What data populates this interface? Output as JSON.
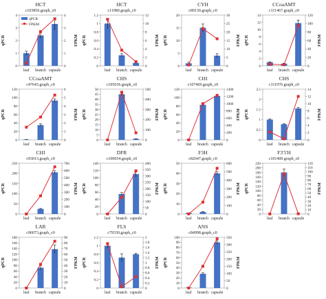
{
  "legend": [
    {
      "label": "qPCR",
      "color": "#4472C4",
      "shape": "bar"
    },
    {
      "label": "FPKM",
      "color": "#E03030",
      "shape": "line"
    }
  ],
  "chart_data": [
    {
      "type": "bar",
      "gene": "HCT",
      "unigene": "c103856.graph_c0",
      "categories": [
        "leaf",
        "branch",
        "capsule"
      ],
      "series": [
        {
          "name": "qPCR",
          "values": [
            1.0,
            2.4,
            3.3
          ],
          "errors": [
            0.15,
            0.25,
            0.5
          ]
        },
        {
          "name": "FPKM",
          "values": [
            0.2,
            2.7,
            3.7
          ]
        }
      ],
      "ylabel": "qPCR",
      "y2label": "FPKM",
      "ylim": [
        0,
        4
      ],
      "yticks": [
        0,
        1,
        2,
        3,
        4
      ],
      "y2lim": [
        0,
        4
      ],
      "y2ticks": [
        0,
        1,
        2,
        3,
        4
      ]
    },
    {
      "type": "bar",
      "gene": "HCT",
      "unigene": "c11980.graph_c0",
      "categories": [
        "leaf",
        "branch",
        "capsule"
      ],
      "series": [
        {
          "name": "qPCR",
          "values": [
            1.0,
            0.25,
            0.07
          ],
          "errors": [
            0.12,
            0.04,
            0.02
          ]
        },
        {
          "name": "FPKM",
          "values": [
            11.0,
            3.7,
            1.0
          ]
        }
      ],
      "ylabel": "qPCR",
      "y2label": "FPKM",
      "ylim": [
        0,
        1.2
      ],
      "yticks": [
        0,
        0.2,
        0.4,
        0.6,
        0.8,
        1.0,
        1.2
      ],
      "y2lim": [
        0,
        12
      ],
      "y2ticks": [
        0,
        2,
        4,
        6,
        8,
        10,
        12
      ]
    },
    {
      "type": "bar",
      "gene": "CYH",
      "unigene": "c89130.graph_c0",
      "categories": [
        "leaf",
        "branch",
        "capsule"
      ],
      "series": [
        {
          "name": "qPCR",
          "values": [
            1.0,
            15.0,
            4.0
          ],
          "errors": [
            0.4,
            1.5,
            0.8
          ]
        },
        {
          "name": "FPKM",
          "values": [
            0.5,
            22.0,
            16.0
          ]
        }
      ],
      "ylabel": "qPCR",
      "y2label": "FPKM",
      "ylim": [
        0,
        20
      ],
      "yticks": [
        0,
        5,
        10,
        15,
        20
      ],
      "y2lim": [
        0,
        30
      ],
      "y2ticks": [
        0,
        5,
        10,
        15,
        20,
        25,
        30
      ]
    },
    {
      "type": "bar",
      "gene": "CCoaAMT",
      "unigene": "c111467.graph_c0",
      "categories": [
        "leaf",
        "branch",
        "capsule"
      ],
      "series": [
        {
          "name": "qPCR",
          "values": [
            1.0,
            0.6,
            11.8
          ],
          "errors": [
            0.1,
            0.1,
            0.8
          ]
        },
        {
          "name": "FPKM",
          "values": [
            4.0,
            2.5,
            95.0
          ]
        }
      ],
      "ylabel": "qPCR",
      "y2label": "FPKM",
      "ylim": [
        0,
        14
      ],
      "yticks": [
        0,
        2,
        4,
        6,
        8,
        10,
        12,
        14
      ],
      "y2lim": [
        0,
        120
      ],
      "y2ticks": [
        0,
        20,
        40,
        60,
        80,
        100,
        120
      ]
    },
    {
      "type": "bar",
      "gene": "CCoaAMT",
      "unigene": "c47643.graph_c0",
      "categories": [
        "leaf",
        "branch",
        "capsule"
      ],
      "series": [
        {
          "name": "qPCR",
          "values": [
            1.0,
            35.0,
            93.0
          ],
          "errors": [
            0.3,
            3.0,
            4.0
          ]
        },
        {
          "name": "FPKM",
          "values": [
            1.5,
            2.7,
            5.3
          ]
        }
      ],
      "ylabel": "qPCR",
      "y2label": "FPKM",
      "ylim": [
        0,
        120
      ],
      "yticks": [
        0,
        20,
        40,
        60,
        80,
        100,
        120
      ],
      "y2lim": [
        0,
        6
      ],
      "y2ticks": [
        0,
        1,
        2,
        3,
        4,
        5,
        6
      ]
    },
    {
      "type": "bar",
      "gene": "CHS",
      "unigene": "c105636.graph_c0",
      "categories": [
        "leaf",
        "branch",
        "capsule"
      ],
      "series": [
        {
          "name": "qPCR",
          "values": [
            0.0,
            45.0,
            1.0
          ],
          "errors": [
            0.0,
            1.2,
            0.2
          ]
        },
        {
          "name": "FPKM",
          "values": [
            0.0,
            470.0,
            70.0
          ]
        }
      ],
      "ylabel": "qPCR",
      "y2label": "FPKM",
      "ylim": [
        0,
        50
      ],
      "yticks": [
        0,
        5,
        10,
        15,
        20,
        25,
        30,
        35,
        40,
        45,
        50
      ],
      "y2lim": [
        0,
        500
      ],
      "y2ticks": [
        0,
        100,
        200,
        300,
        400,
        500
      ]
    },
    {
      "type": "bar",
      "gene": "CHI",
      "unigene": "c107469.graph_c0",
      "categories": [
        "leaf",
        "branch",
        "capsule"
      ],
      "series": [
        {
          "name": "qPCR",
          "values": [
            1.0,
            83.0,
            104.0
          ],
          "errors": [
            0.2,
            2.0,
            3.0
          ]
        },
        {
          "name": "FPKM",
          "values": [
            0.0,
            1000.0,
            1230.0
          ]
        }
      ],
      "ylabel": "qPCR",
      "y2label": "FPKM",
      "ylim": [
        0,
        120
      ],
      "yticks": [
        0,
        20,
        40,
        60,
        80,
        100,
        120
      ],
      "y2lim": [
        0,
        1400
      ],
      "y2ticks": [
        0,
        200,
        400,
        600,
        800,
        1000,
        1200,
        1400
      ]
    },
    {
      "type": "bar",
      "gene": "CHS",
      "unigene": "c111976.graph_c0",
      "categories": [
        "leaf",
        "branch",
        "capsule"
      ],
      "series": [
        {
          "name": "qPCR",
          "values": [
            1.0,
            0.77,
            1.55
          ],
          "errors": [
            0.03,
            0.03,
            0.05
          ]
        },
        {
          "name": "FPKM",
          "values": [
            2.2,
            0.3,
            12.0
          ]
        }
      ],
      "ylabel": "qPCR",
      "y2label": "FPKM",
      "ylim": [
        0,
        2.5
      ],
      "yticks": [
        0,
        0.5,
        1.0,
        1.5,
        2.0,
        2.5
      ],
      "y2lim": [
        0,
        14
      ],
      "y2ticks": [
        0,
        2,
        4,
        6,
        8,
        10,
        12,
        14
      ]
    },
    {
      "type": "bar",
      "gene": "CHI",
      "unigene": "c93013.graph_c0",
      "categories": [
        "leaf",
        "branch",
        "capsule"
      ],
      "series": [
        {
          "name": "qPCR",
          "values": [
            1.0,
            25.0,
            205.0
          ],
          "errors": [
            0.3,
            2.0,
            8.0
          ]
        },
        {
          "name": "FPKM",
          "values": [
            0.0,
            250.0,
            650.0
          ]
        }
      ],
      "ylabel": "qPCR",
      "y2label": "FPKM",
      "ylim": [
        0,
        250
      ],
      "yticks": [
        0,
        50,
        100,
        150,
        200,
        250
      ],
      "y2lim": [
        0,
        700
      ],
      "y2ticks": [
        0,
        100,
        200,
        300,
        400,
        500,
        600,
        700
      ]
    },
    {
      "type": "bar",
      "gene": "DFR",
      "unigene": "c100654.graph_c0",
      "categories": [
        "leaf",
        "branch",
        "capsule"
      ],
      "series": [
        {
          "name": "qPCR",
          "values": [
            1.0,
            55.0,
            110.0
          ],
          "errors": [
            0.2,
            4.0,
            8.0
          ]
        },
        {
          "name": "FPKM",
          "values": [
            0.0,
            130.0,
            340.0
          ]
        }
      ],
      "ylabel": "qPCR",
      "y2label": "FPKM",
      "ylim": [
        0,
        140
      ],
      "yticks": [
        0,
        20,
        40,
        60,
        80,
        100,
        120,
        140
      ],
      "y2lim": [
        0,
        400
      ],
      "y2ticks": [
        0,
        50,
        100,
        150,
        200,
        250,
        300,
        350,
        400
      ]
    },
    {
      "type": "bar",
      "gene": "F3H",
      "unigene": "c82647.graph_c0",
      "categories": [
        "leaf",
        "branch",
        "capsule"
      ],
      "series": [
        {
          "name": "qPCR",
          "values": [
            1.0,
            2.0,
            40.0
          ],
          "errors": [
            0.2,
            0.3,
            1.5
          ]
        },
        {
          "name": "FPKM",
          "values": [
            0.0,
            140.0,
            540.0
          ]
        }
      ],
      "ylabel": "qPCR",
      "y2label": "FPKM",
      "ylim": [
        0,
        50
      ],
      "yticks": [
        0,
        10,
        20,
        30,
        40,
        50
      ],
      "y2lim": [
        0,
        600
      ],
      "y2ticks": [
        0,
        100,
        200,
        300,
        400,
        500,
        600
      ]
    },
    {
      "type": "bar",
      "gene": "F3'5'H",
      "unigene": "c101400.graph_c0",
      "categories": [
        "leaf",
        "branch",
        "capsule"
      ],
      "series": [
        {
          "name": "qPCR",
          "values": [
            0.0,
            180.0,
            1.0
          ],
          "errors": [
            0.0,
            15.0,
            0.3
          ]
        },
        {
          "name": "FPKM",
          "values": [
            0.0,
            95.0,
            0.5
          ]
        }
      ],
      "ylabel": "qPCR",
      "y2label": "FPKM",
      "ylim": [
        0,
        220
      ],
      "yticks": [
        0,
        20,
        40,
        60,
        80,
        100,
        120,
        140,
        160,
        180,
        200,
        220
      ],
      "y2lim": [
        0,
        120
      ],
      "y2ticks": [
        0,
        10,
        20,
        30,
        40,
        50,
        60,
        70,
        80,
        90,
        100,
        110,
        120
      ]
    },
    {
      "type": "bar",
      "gene": "LAR",
      "unigene": "c96073.graph_c0",
      "categories": [
        "leaf",
        "branch",
        "capsule"
      ],
      "series": [
        {
          "name": "qPCR",
          "values": [
            1.0,
            72.0,
            138.0
          ],
          "errors": [
            0.3,
            8.0,
            15.0
          ]
        },
        {
          "name": "FPKM",
          "values": [
            0.0,
            42.0,
            83.0
          ]
        }
      ],
      "ylabel": "qPCR",
      "y2label": "FPKM",
      "ylim": [
        0,
        180
      ],
      "yticks": [
        0,
        20,
        40,
        60,
        80,
        100,
        120,
        140,
        160,
        180
      ],
      "y2lim": [
        0,
        90
      ],
      "y2ticks": [
        0,
        10,
        20,
        30,
        40,
        50,
        60,
        70,
        80,
        90
      ]
    },
    {
      "type": "bar",
      "gene": "FLS",
      "unigene": "c79330.graph_c0",
      "categories": [
        "leaf",
        "branch",
        "capsule"
      ],
      "series": [
        {
          "name": "qPCR",
          "values": [
            1.0,
            0.72,
            0.8
          ],
          "errors": [
            0.06,
            0.09,
            0.02
          ]
        },
        {
          "name": "FPKM",
          "values": [
            1.75,
            0.05,
            0.45
          ]
        }
      ],
      "ylabel": "qPCR",
      "y2label": "FPKM",
      "ylim": [
        0,
        1.2
      ],
      "yticks": [
        0,
        0.2,
        0.4,
        0.6,
        0.8,
        1.0,
        1.2
      ],
      "y2lim": [
        0,
        2
      ],
      "y2ticks": [
        0,
        0.2,
        0.4,
        0.6,
        0.8,
        1.0,
        1.2,
        1.4,
        1.6,
        1.8,
        2.0
      ]
    },
    {
      "type": "bar",
      "gene": "ANS",
      "unigene": "c84998.graph_c0",
      "categories": [
        "leaf",
        "branch",
        "capsule"
      ],
      "series": [
        {
          "name": "qPCR",
          "values": [
            1.0,
            28.0,
            90.0
          ],
          "errors": [
            0.2,
            2.0,
            3.0
          ]
        },
        {
          "name": "FPKM",
          "values": [
            0.0,
            150.0,
            340.0
          ]
        }
      ],
      "ylabel": "qPCR",
      "y2label": "FPKM",
      "ylim": [
        0,
        100
      ],
      "yticks": [
        0,
        10,
        20,
        30,
        40,
        50,
        60,
        70,
        80,
        90,
        100
      ],
      "y2lim": [
        0,
        350
      ],
      "y2ticks": [
        0,
        50,
        100,
        150,
        200,
        250,
        300,
        350
      ]
    }
  ]
}
